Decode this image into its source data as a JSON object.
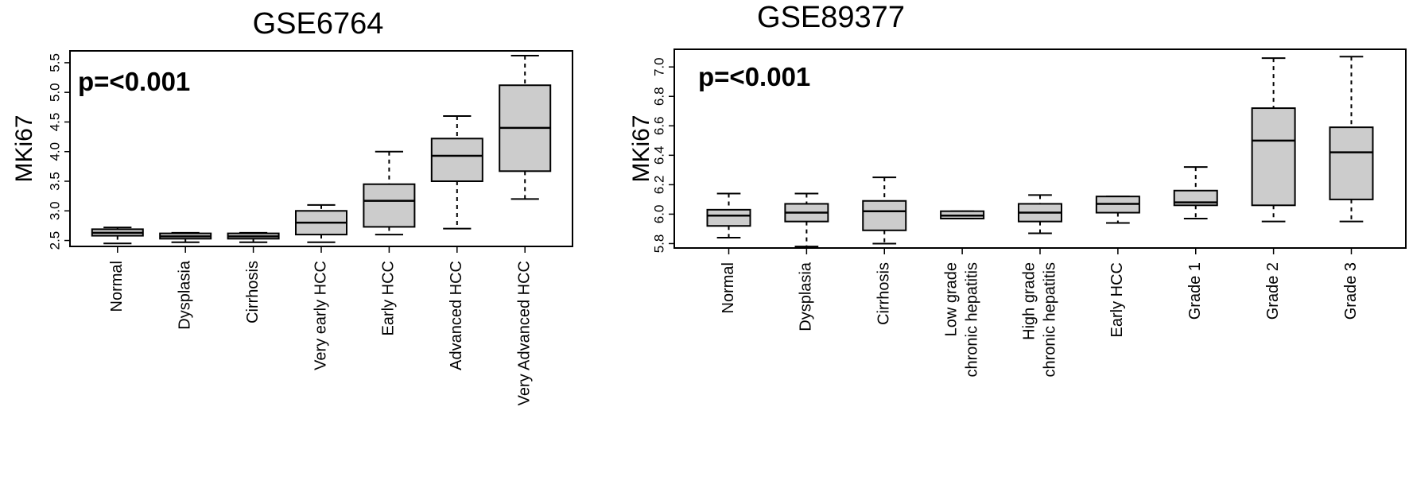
{
  "chart_data": [
    {
      "type": "box",
      "title": "GSE6764",
      "ylabel": "MKi67",
      "annotation": "p=<0.001",
      "ylim": [
        2.4,
        5.7
      ],
      "yticks": [
        "2.5",
        "3.0",
        "3.5",
        "4.0",
        "4.5",
        "5.0",
        "5.5"
      ],
      "categories": [
        [
          "Normal"
        ],
        [
          "Dysplasia"
        ],
        [
          "Cirrhosis"
        ],
        [
          "Very early HCC"
        ],
        [
          "Early HCC"
        ],
        [
          "Advanced HCC"
        ],
        [
          "Very Advanced HCC"
        ]
      ],
      "boxes": [
        {
          "min": 2.45,
          "q1": 2.58,
          "median": 2.63,
          "q3": 2.69,
          "max": 2.72
        },
        {
          "min": 2.47,
          "q1": 2.53,
          "median": 2.57,
          "q3": 2.62,
          "max": 2.63
        },
        {
          "min": 2.47,
          "q1": 2.53,
          "median": 2.57,
          "q3": 2.62,
          "max": 2.63
        },
        {
          "min": 2.47,
          "q1": 2.6,
          "median": 2.8,
          "q3": 3.0,
          "max": 3.1
        },
        {
          "min": 2.6,
          "q1": 2.73,
          "median": 3.17,
          "q3": 3.45,
          "max": 4.0
        },
        {
          "min": 2.7,
          "q1": 3.5,
          "median": 3.93,
          "q3": 4.22,
          "max": 4.6
        },
        {
          "min": 3.2,
          "q1": 3.67,
          "median": 4.4,
          "q3": 5.12,
          "max": 5.62
        }
      ],
      "box_color": "#cccccc"
    },
    {
      "type": "box",
      "title": "GSE89377",
      "ylabel": "MKi67",
      "annotation": "p=<0.001",
      "ylim": [
        5.77,
        7.12
      ],
      "yticks": [
        "5.8",
        "6.0",
        "6.2",
        "6.4",
        "6.6",
        "6.8",
        "7.0"
      ],
      "categories": [
        [
          "Normal"
        ],
        [
          "Dysplasia"
        ],
        [
          "Cirrhosis"
        ],
        [
          "Low grade",
          "chronic hepatitis"
        ],
        [
          "High grade",
          "chronic hepatitis"
        ],
        [
          "Early HCC"
        ],
        [
          "Grade 1"
        ],
        [
          "Grade 2"
        ],
        [
          "Grade 3"
        ]
      ],
      "boxes": [
        {
          "min": 5.84,
          "q1": 5.92,
          "median": 5.99,
          "q3": 6.03,
          "max": 6.14
        },
        {
          "min": 5.78,
          "q1": 5.95,
          "median": 6.01,
          "q3": 6.07,
          "max": 6.14
        },
        {
          "min": 5.8,
          "q1": 5.89,
          "median": 6.02,
          "q3": 6.09,
          "max": 6.25
        },
        {
          "min": 5.97,
          "q1": 5.97,
          "median": 5.99,
          "q3": 6.02,
          "max": 6.02
        },
        {
          "min": 5.87,
          "q1": 5.95,
          "median": 6.01,
          "q3": 6.07,
          "max": 6.13
        },
        {
          "min": 5.94,
          "q1": 6.01,
          "median": 6.07,
          "q3": 6.12,
          "max": 6.12
        },
        {
          "min": 5.97,
          "q1": 6.06,
          "median": 6.08,
          "q3": 6.16,
          "max": 6.32
        },
        {
          "min": 5.95,
          "q1": 6.06,
          "median": 6.5,
          "q3": 6.72,
          "max": 7.06
        },
        {
          "min": 5.95,
          "q1": 6.1,
          "median": 6.42,
          "q3": 6.59,
          "max": 7.07
        }
      ],
      "box_color": "#cccccc"
    }
  ]
}
